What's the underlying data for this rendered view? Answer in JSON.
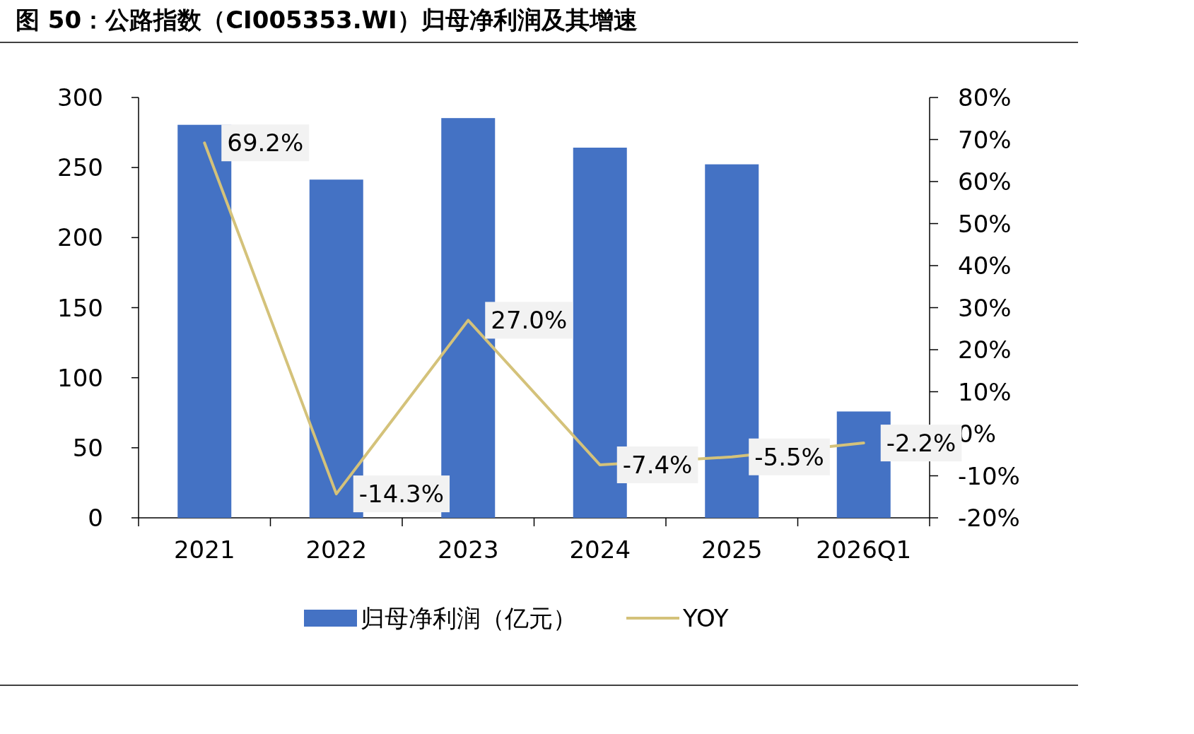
{
  "chart_data": {
    "type": "bar",
    "title": "图 50：公路指数（CI005353.WI）归母净利润及其增速",
    "categories": [
      "2021",
      "2022",
      "2023",
      "2024",
      "2025",
      "2026Q1"
    ],
    "series": [
      {
        "name": "归母净利润（亿元）",
        "color": "#4472c4",
        "values": [
          280.5,
          241.4,
          285.3,
          264.2,
          252.3,
          75.9
        ]
      },
      {
        "name": "YOY",
        "type": "line",
        "axis": "y2",
        "color": "#d4c27a",
        "values": [
          69.2,
          -14.3,
          27.0,
          -7.4,
          -5.5,
          -2.2
        ],
        "value_labels": [
          "69.2%",
          "-14.3%",
          "27.0%",
          "-7.4%",
          "-5.5%",
          "-2.2%"
        ]
      }
    ],
    "ylim": [
      0,
      300
    ],
    "yticks": [
      0,
      50,
      100,
      150,
      200,
      250,
      300
    ],
    "y2lim": [
      -20,
      80
    ],
    "y2ticks": [
      {
        "value": -20,
        "label": "-20%"
      },
      {
        "value": -10,
        "label": "-10%"
      },
      {
        "value": 0,
        "label": "0%"
      },
      {
        "value": 10,
        "label": "10%"
      },
      {
        "value": 20,
        "label": "20%"
      },
      {
        "value": 30,
        "label": "30%"
      },
      {
        "value": 40,
        "label": "40%"
      },
      {
        "value": 50,
        "label": "50%"
      },
      {
        "value": 60,
        "label": "60%"
      },
      {
        "value": 70,
        "label": "70%"
      },
      {
        "value": 80,
        "label": "80%"
      }
    ],
    "legend": "bottom"
  }
}
